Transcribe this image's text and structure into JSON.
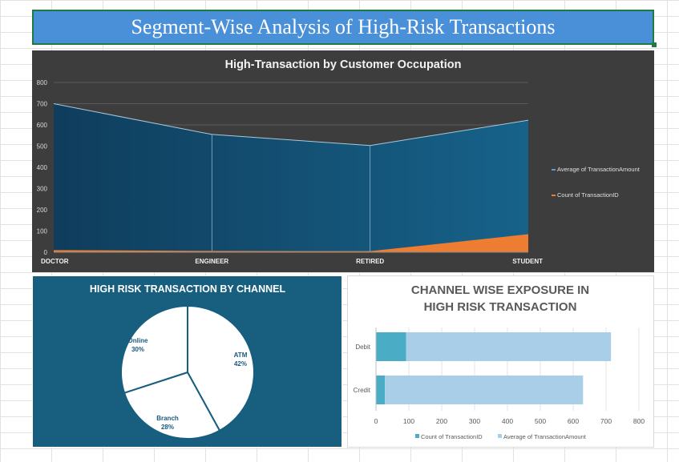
{
  "page_title": "Segment-Wise Analysis of High-Risk Transactions",
  "colors": {
    "title_bg": "#4a90d9",
    "area_blue": "#17628a",
    "area_orange": "#ed7d31",
    "pie_bg": "#175e7f",
    "bar_dark": "#4bacc6",
    "bar_light": "#a9cfe8"
  },
  "chart_data": [
    {
      "type": "area",
      "title": "High-Transaction by Customer Occupation",
      "categories": [
        "DOCTOR",
        "ENGINEER",
        "RETIRED",
        "STUDENT"
      ],
      "series": [
        {
          "name": "Average of TransactionAmount",
          "values": [
            700,
            555,
            503,
            622
          ]
        },
        {
          "name": "Count of TransactionID",
          "values": [
            10,
            6,
            5,
            85
          ]
        }
      ],
      "ylim": [
        0,
        800
      ],
      "yticks": [
        0,
        100,
        200,
        300,
        400,
        500,
        600,
        700,
        800
      ],
      "legend": "right"
    },
    {
      "type": "pie",
      "title": "HIGH RISK TRANSACTION BY CHANNEL",
      "slices": [
        {
          "label": "ATM",
          "pct_label": "42%",
          "value": 42
        },
        {
          "label": "Branch",
          "pct_label": "28%",
          "value": 28
        },
        {
          "label": "Online",
          "pct_label": "30%",
          "value": 30
        }
      ]
    },
    {
      "type": "bar",
      "orientation": "horizontal",
      "stacked": true,
      "title": "CHANNEL WISE EXPOSURE IN HIGH RISK TRANSACTION",
      "categories": [
        "Debit",
        "Credit"
      ],
      "series": [
        {
          "name": "Count of TransactionID",
          "values": [
            92,
            27
          ]
        },
        {
          "name": "Average of TransactionAmount",
          "values": [
            623,
            603
          ]
        }
      ],
      "xlim": [
        0,
        800
      ],
      "xticks": [
        0,
        100,
        200,
        300,
        400,
        500,
        600,
        700,
        800
      ],
      "legend": "bottom"
    }
  ]
}
